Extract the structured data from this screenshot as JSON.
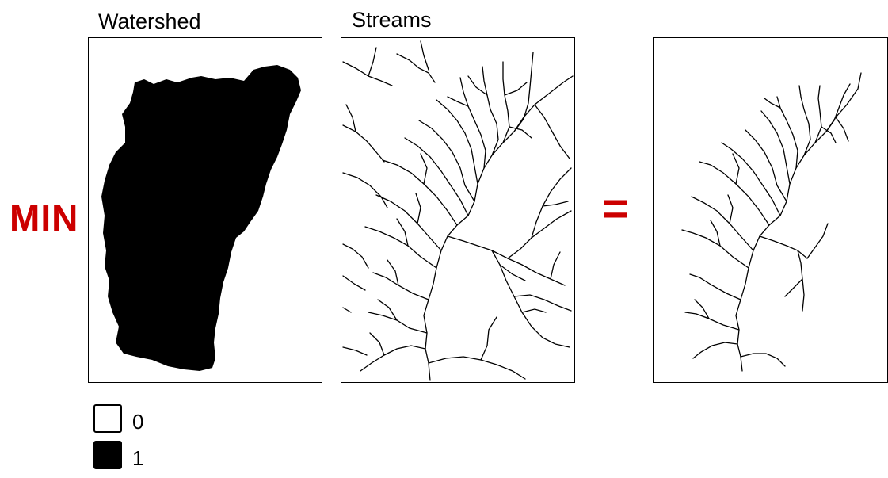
{
  "operation": {
    "operator_label": "MIN",
    "result_symbol": "="
  },
  "panels": {
    "watershed": {
      "title": "Watershed"
    },
    "streams": {
      "title": "Streams"
    },
    "result": {
      "title": ""
    }
  },
  "legend": {
    "items": [
      {
        "value": "0",
        "fill": "#ffffff"
      },
      {
        "value": "1",
        "fill": "#000000"
      }
    ]
  },
  "colors": {
    "operator": "#cc0000",
    "raster_on": "#000000",
    "raster_off": "#ffffff"
  }
}
